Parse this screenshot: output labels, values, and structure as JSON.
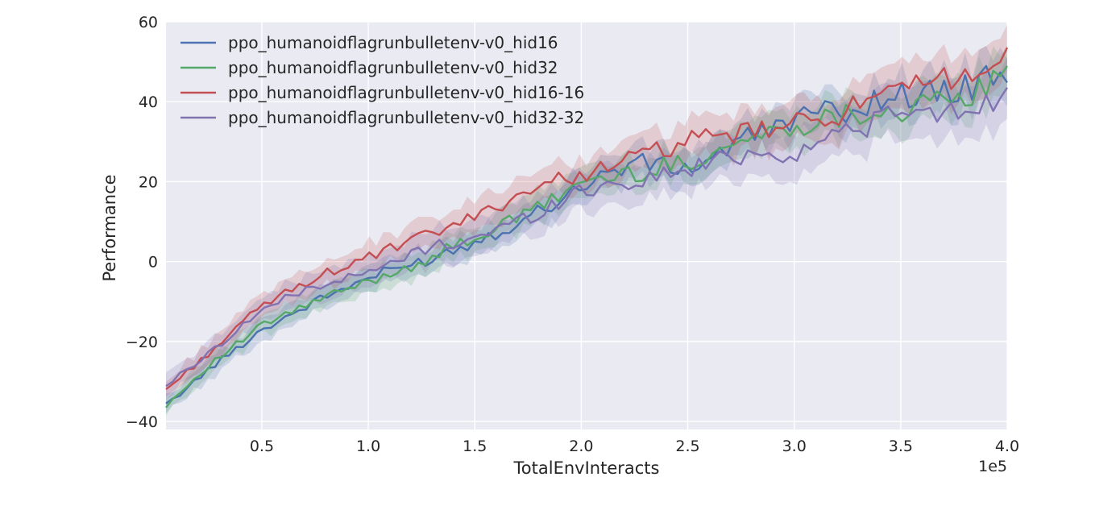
{
  "chart_data": {
    "type": "line",
    "xlabel": "TotalEnvInteracts",
    "ylabel": "Performance",
    "x_offset_text": "1e5",
    "xlim": [
      5000,
      400000
    ],
    "ylim": [
      -42,
      60
    ],
    "x_scale_divisor": 100000,
    "xticks": [
      0.5,
      1.0,
      1.5,
      2.0,
      2.5,
      3.0,
      3.5,
      4.0
    ],
    "xtick_labels": [
      "0.5",
      "1.0",
      "1.5",
      "2.0",
      "2.5",
      "3.0",
      "3.5",
      "4.0"
    ],
    "yticks": [
      -40,
      -20,
      0,
      20,
      40,
      60
    ],
    "ytick_labels": [
      "−40",
      "−20",
      "0",
      "20",
      "40",
      "60"
    ],
    "grid": true,
    "legend_position": "top-left",
    "x": [
      5000,
      25000,
      50000,
      75000,
      100000,
      125000,
      150000,
      175000,
      200000,
      225000,
      250000,
      275000,
      300000,
      325000,
      350000,
      375000,
      400000
    ],
    "series": [
      {
        "name": "ppo_humanoidflagrunbulletenv-v0_hid16",
        "color": "#4c72b0",
        "values": [
          -36,
          -27,
          -17,
          -10,
          -4,
          0,
          5,
          11,
          19,
          25,
          23,
          30,
          36,
          38,
          42,
          42,
          48
        ],
        "band": 3
      },
      {
        "name": "ppo_humanoidflagrunbulletenv-v0_hid32",
        "color": "#55a868",
        "values": [
          -36,
          -26,
          -16,
          -10,
          -5,
          0,
          6,
          12,
          20,
          22,
          25,
          30,
          34,
          37,
          38,
          40,
          46
        ],
        "band": 3
      },
      {
        "name": "ppo_humanoidflagrunbulletenv-v0_hid16-16",
        "color": "#c44e52",
        "values": [
          -32,
          -23,
          -11,
          -4,
          1,
          6,
          11,
          18,
          22,
          26,
          30,
          32,
          34,
          38,
          42,
          47,
          50
        ],
        "band": 3.5
      },
      {
        "name": "ppo_humanoidflagrunbulletenv-v0_hid32-32",
        "color": "#8172b2",
        "values": [
          -31,
          -23,
          -12,
          -6,
          -3,
          3,
          6,
          11,
          18,
          20,
          23,
          27,
          27,
          33,
          37,
          37,
          42
        ],
        "band": 4
      }
    ]
  }
}
